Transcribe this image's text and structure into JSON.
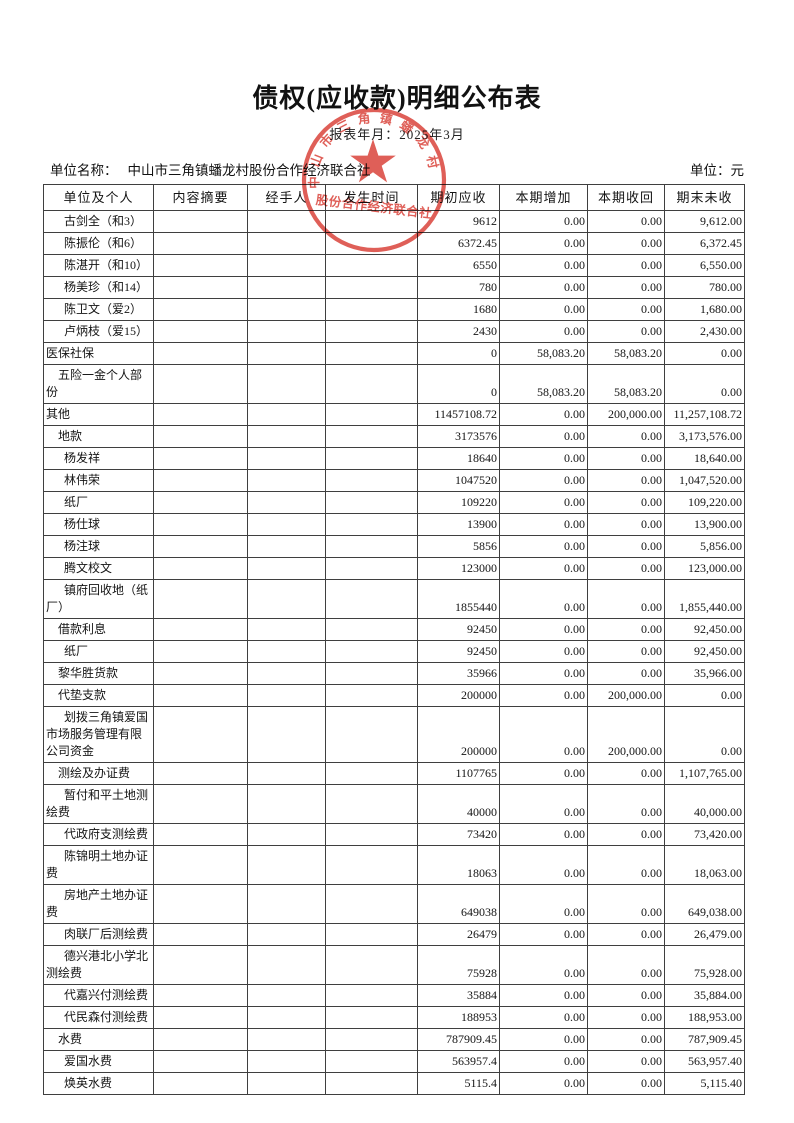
{
  "title": "债权(应收款)明细公布表",
  "subtitle": "报表年月：2025年3月",
  "info": {
    "org_label": "单位名称：",
    "org_name": "中山市三角镇蟠龙村股份合作经济联合社",
    "unit_label": "单位：元"
  },
  "stamp": {
    "ring_text": "中山市三角镇蟠龙村",
    "bottom_text": "股份合作经济联合社",
    "color": "#d83c33"
  },
  "table": {
    "columns": [
      "单位及个人",
      "内容摘要",
      "经手人",
      "发生时间",
      "期初应收",
      "本期增加",
      "本期收回",
      "期末未收"
    ],
    "rows": [
      {
        "label": "古剑全（和3）",
        "indent": 2,
        "values": [
          "9612",
          "0.00",
          "0.00",
          "9,612.00"
        ]
      },
      {
        "label": "陈振伦（和6）",
        "indent": 2,
        "values": [
          "6372.45",
          "0.00",
          "0.00",
          "6,372.45"
        ]
      },
      {
        "label": "陈湛开（和10）",
        "indent": 2,
        "values": [
          "6550",
          "0.00",
          "0.00",
          "6,550.00"
        ]
      },
      {
        "label": "杨美珍（和14）",
        "indent": 2,
        "values": [
          "780",
          "0.00",
          "0.00",
          "780.00"
        ]
      },
      {
        "label": "陈卫文（爱2）",
        "indent": 2,
        "values": [
          "1680",
          "0.00",
          "0.00",
          "1,680.00"
        ]
      },
      {
        "label": "卢炳枝（爱15）",
        "indent": 2,
        "values": [
          "2430",
          "0.00",
          "0.00",
          "2,430.00"
        ]
      },
      {
        "label": "医保社保",
        "indent": 0,
        "values": [
          "0",
          "58,083.20",
          "58,083.20",
          "0.00"
        ]
      },
      {
        "label": "五险一金个人部份",
        "indent": 1,
        "values": [
          "0",
          "58,083.20",
          "58,083.20",
          "0.00"
        ]
      },
      {
        "label": "其他",
        "indent": 0,
        "values": [
          "11457108.72",
          "0.00",
          "200,000.00",
          "11,257,108.72"
        ]
      },
      {
        "label": "地款",
        "indent": 1,
        "values": [
          "3173576",
          "0.00",
          "0.00",
          "3,173,576.00"
        ]
      },
      {
        "label": "杨发祥",
        "indent": 2,
        "values": [
          "18640",
          "0.00",
          "0.00",
          "18,640.00"
        ]
      },
      {
        "label": "林伟荣",
        "indent": 2,
        "values": [
          "1047520",
          "0.00",
          "0.00",
          "1,047,520.00"
        ]
      },
      {
        "label": "纸厂",
        "indent": 2,
        "values": [
          "109220",
          "0.00",
          "0.00",
          "109,220.00"
        ]
      },
      {
        "label": "杨仕球",
        "indent": 2,
        "values": [
          "13900",
          "0.00",
          "0.00",
          "13,900.00"
        ]
      },
      {
        "label": "杨注球",
        "indent": 2,
        "values": [
          "5856",
          "0.00",
          "0.00",
          "5,856.00"
        ]
      },
      {
        "label": "腾文校文",
        "indent": 2,
        "values": [
          "123000",
          "0.00",
          "0.00",
          "123,000.00"
        ]
      },
      {
        "label": "镇府回收地（纸厂）",
        "indent": 2,
        "values": [
          "1855440",
          "0.00",
          "0.00",
          "1,855,440.00"
        ]
      },
      {
        "label": "借款利息",
        "indent": 1,
        "values": [
          "92450",
          "0.00",
          "0.00",
          "92,450.00"
        ]
      },
      {
        "label": "纸厂",
        "indent": 2,
        "values": [
          "92450",
          "0.00",
          "0.00",
          "92,450.00"
        ]
      },
      {
        "label": "黎华胜货款",
        "indent": 1,
        "values": [
          "35966",
          "0.00",
          "0.00",
          "35,966.00"
        ]
      },
      {
        "label": "代垫支款",
        "indent": 1,
        "values": [
          "200000",
          "0.00",
          "200,000.00",
          "0.00"
        ]
      },
      {
        "label": "划拨三角镇爱国市场服务管理有限公司资金",
        "indent": 2,
        "values": [
          "200000",
          "0.00",
          "200,000.00",
          "0.00"
        ]
      },
      {
        "label": "测绘及办证费",
        "indent": 1,
        "values": [
          "1107765",
          "0.00",
          "0.00",
          "1,107,765.00"
        ]
      },
      {
        "label": "暂付和平土地测绘费",
        "indent": 2,
        "values": [
          "40000",
          "0.00",
          "0.00",
          "40,000.00"
        ]
      },
      {
        "label": "代政府支测绘费",
        "indent": 2,
        "values": [
          "73420",
          "0.00",
          "0.00",
          "73,420.00"
        ]
      },
      {
        "label": "陈锦明土地办证费",
        "indent": 2,
        "values": [
          "18063",
          "0.00",
          "0.00",
          "18,063.00"
        ]
      },
      {
        "label": "房地产土地办证费",
        "indent": 2,
        "values": [
          "649038",
          "0.00",
          "0.00",
          "649,038.00"
        ]
      },
      {
        "label": "肉联厂后测绘费",
        "indent": 2,
        "values": [
          "26479",
          "0.00",
          "0.00",
          "26,479.00"
        ]
      },
      {
        "label": "德兴港北小学北测绘费",
        "indent": 2,
        "values": [
          "75928",
          "0.00",
          "0.00",
          "75,928.00"
        ]
      },
      {
        "label": "代嘉兴付测绘费",
        "indent": 2,
        "values": [
          "35884",
          "0.00",
          "0.00",
          "35,884.00"
        ]
      },
      {
        "label": "代民森付测绘费",
        "indent": 2,
        "values": [
          "188953",
          "0.00",
          "0.00",
          "188,953.00"
        ]
      },
      {
        "label": "水费",
        "indent": 1,
        "values": [
          "787909.45",
          "0.00",
          "0.00",
          "787,909.45"
        ]
      },
      {
        "label": "爱国水费",
        "indent": 2,
        "values": [
          "563957.4",
          "0.00",
          "0.00",
          "563,957.40"
        ]
      },
      {
        "label": "焕英水费",
        "indent": 2,
        "values": [
          "5115.4",
          "0.00",
          "0.00",
          "5,115.40"
        ]
      }
    ]
  }
}
